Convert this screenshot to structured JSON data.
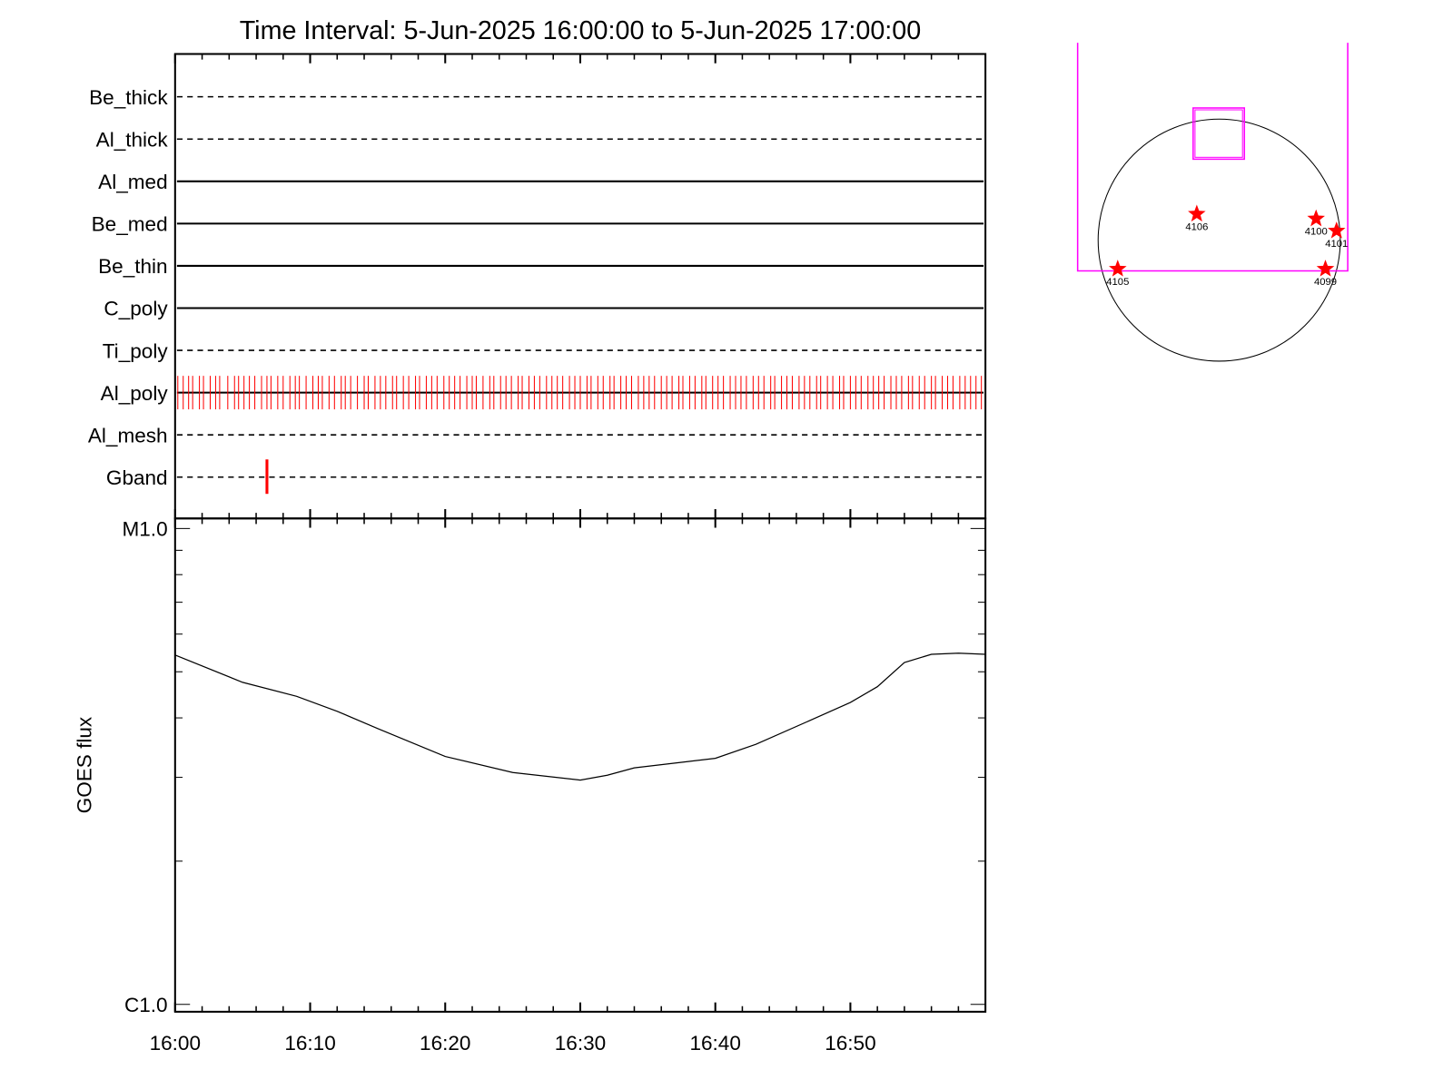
{
  "chart_data": [
    {
      "type": "timeline",
      "title": "Time Interval:  5-Jun-2025 16:00:00 to  5-Jun-2025 17:00:00",
      "xlim": [
        0,
        60
      ],
      "event_color": "#ff0000",
      "rows": [
        {
          "name": "Be_thick",
          "style": "dashed"
        },
        {
          "name": "Al_thick",
          "style": "dashed"
        },
        {
          "name": "Al_med",
          "style": "solid"
        },
        {
          "name": "Be_med",
          "style": "solid"
        },
        {
          "name": "Be_thin",
          "style": "solid"
        },
        {
          "name": "C_poly",
          "style": "solid"
        },
        {
          "name": "Ti_poly",
          "style": "dashed"
        },
        {
          "name": "Al_poly",
          "style": "solid",
          "events": [
            0.2,
            0.6,
            1.0,
            1.3,
            1.8,
            2.1,
            2.6,
            3.0,
            3.3,
            3.9,
            4.4,
            4.7,
            5.1,
            5.5,
            5.9,
            6.4,
            6.8,
            7.1,
            7.6,
            8.0,
            8.5,
            8.9,
            9.2,
            9.7,
            10.2,
            10.6,
            10.9,
            11.4,
            11.8,
            12.3,
            12.6,
            13.0,
            13.5,
            14.0,
            14.3,
            14.8,
            15.2,
            15.6,
            16.1,
            16.4,
            16.9,
            17.3,
            17.8,
            18.1,
            18.6,
            19.0,
            19.4,
            19.9,
            20.3,
            20.7,
            21.1,
            21.6,
            22.0,
            22.3,
            22.8,
            23.3,
            23.6,
            24.1,
            24.5,
            24.9,
            25.4,
            25.7,
            26.2,
            26.6,
            27.0,
            27.5,
            27.9,
            28.3,
            28.7,
            29.2,
            29.6,
            30.0,
            30.5,
            30.8,
            31.3,
            31.7,
            32.2,
            32.5,
            33.0,
            33.4,
            33.8,
            34.3,
            34.7,
            35.1,
            35.5,
            36.0,
            36.4,
            36.8,
            37.3,
            37.6,
            38.1,
            38.5,
            39.0,
            39.3,
            39.8,
            40.2,
            40.6,
            41.1,
            41.5,
            41.9,
            42.3,
            42.8,
            43.2,
            43.6,
            44.1,
            44.4,
            44.9,
            45.3,
            45.7,
            46.2,
            46.6,
            47.0,
            47.5,
            47.8,
            48.3,
            48.7,
            49.2,
            49.5,
            50.0,
            50.4,
            50.8,
            51.3,
            51.7,
            52.1,
            52.5,
            53.0,
            53.4,
            53.8,
            54.3,
            54.6,
            55.1,
            55.5,
            56.0,
            56.3,
            56.8,
            57.2,
            57.6,
            58.1,
            58.5,
            58.9,
            59.3,
            59.7
          ]
        },
        {
          "name": "Al_mesh",
          "style": "dashed"
        },
        {
          "name": "Gband",
          "style": "dashed",
          "events": [
            6.8
          ]
        }
      ]
    },
    {
      "type": "line",
      "ylabel": "GOES flux",
      "log_scale": true,
      "color": "#000000",
      "x": [
        0,
        5,
        9,
        12,
        15,
        20,
        25,
        30,
        32,
        34,
        38,
        40,
        43,
        47,
        50,
        52,
        54,
        56,
        58,
        60
      ],
      "values": [
        5.42e-06,
        4.75e-06,
        4.44e-06,
        4.13e-06,
        3.8e-06,
        3.32e-06,
        3.07e-06,
        2.96e-06,
        3.03e-06,
        3.14e-06,
        3.24e-06,
        3.29e-06,
        3.52e-06,
        3.95e-06,
        4.31e-06,
        4.65e-06,
        5.23e-06,
        5.44e-06,
        5.47e-06,
        5.44e-06
      ],
      "xlim": [
        0,
        60
      ],
      "xticks": [
        {
          "value": 0,
          "label": "16:00"
        },
        {
          "value": 10,
          "label": "16:10"
        },
        {
          "value": 20,
          "label": "16:20"
        },
        {
          "value": 30,
          "label": "16:30"
        },
        {
          "value": 40,
          "label": "16:40"
        },
        {
          "value": 50,
          "label": "16:50"
        }
      ],
      "xminorticks": [
        2,
        4,
        6,
        8,
        12,
        14,
        16,
        18,
        22,
        24,
        26,
        28,
        32,
        34,
        36,
        38,
        42,
        44,
        46,
        48,
        52,
        54,
        56,
        58
      ],
      "ylim": [
        9.65e-07,
        1.05e-05
      ],
      "yticks": [
        {
          "value": 1e-06,
          "label": "C1.0"
        },
        {
          "value": 1e-05,
          "label": "M1.0"
        }
      ],
      "yminorticks": [
        2e-06,
        3e-06,
        4e-06,
        5e-06,
        6e-06,
        7e-06,
        8e-06,
        9e-06
      ]
    },
    {
      "type": "scatter",
      "color": "#ff0000",
      "points": [
        {
          "label": "4106",
          "x": -175,
          "y": 204
        },
        {
          "label": "4100",
          "x": 756,
          "y": 167
        },
        {
          "label": "4101",
          "x": 916,
          "y": 73
        },
        {
          "label": "4105",
          "x": -792,
          "y": -225
        },
        {
          "label": "4099",
          "x": 829,
          "y": -225
        }
      ]
    }
  ]
}
